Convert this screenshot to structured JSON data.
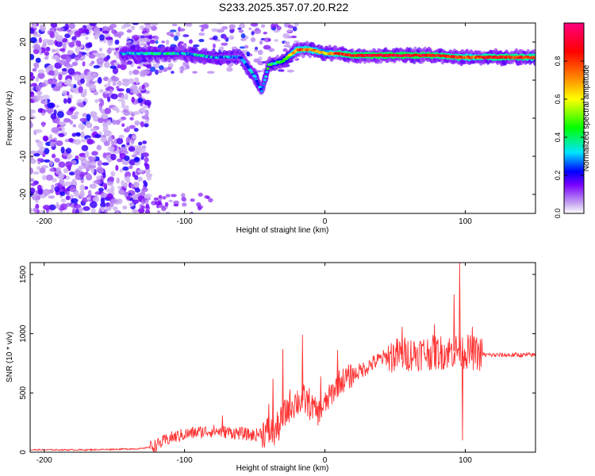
{
  "title": "S233.2025.357.07.20.R22",
  "chart_data": [
    {
      "type": "heatmap",
      "name": "spectrogram",
      "xlabel": "Height of straight line (km)",
      "ylabel": "Frequency (Hz)",
      "xlim": [
        -210,
        150
      ],
      "ylim": [
        -25,
        25
      ],
      "xticks": [
        -200,
        -100,
        0,
        100
      ],
      "yticks": [
        -20,
        -10,
        0,
        10,
        20
      ],
      "colorbar": {
        "label": "Normalized spectral amplitude",
        "range": [
          0,
          1
        ],
        "ticks": [
          "0.0",
          "0.2",
          "0.4",
          "0.6",
          "0.8"
        ],
        "tick_values": [
          0,
          0.2,
          0.4,
          0.6,
          0.8
        ],
        "colors": [
          "#ffffff",
          "#b98cf0",
          "#7a00ff",
          "#0000ff",
          "#00e5ff",
          "#00ff00",
          "#ffff00",
          "#ff7f00",
          "#ff0000",
          "#ff007f"
        ]
      },
      "ridge": {
        "description_points_x": [
          -145,
          -120,
          -100,
          -80,
          -60,
          -50,
          -45,
          -40,
          -30,
          -20,
          -10,
          0,
          10,
          20,
          40,
          60,
          80,
          95,
          105,
          110,
          130,
          150
        ],
        "frequency_hz": [
          17,
          17,
          17,
          16,
          16,
          11,
          7,
          14,
          15,
          18,
          18,
          17,
          17,
          16.5,
          16.5,
          16.5,
          16.5,
          16,
          16,
          16,
          16,
          16
        ],
        "amplitude": [
          0.3,
          0.35,
          0.3,
          0.3,
          0.25,
          0.3,
          0.25,
          0.4,
          0.45,
          0.75,
          0.75,
          0.6,
          0.8,
          0.85,
          0.9,
          0.9,
          0.85,
          0.8,
          0.75,
          0.8,
          0.85,
          0.8
        ]
      },
      "noise_region_x": [
        -210,
        -140
      ]
    },
    {
      "type": "line",
      "name": "snr",
      "xlabel": "Height of straight line (km)",
      "ylabel": "SNR (10 * v/v)",
      "xlim": [
        -210,
        150
      ],
      "ylim": [
        0,
        1600
      ],
      "xticks": [
        -200,
        -100,
        0,
        100
      ],
      "yticks": [
        0,
        500,
        1000,
        1500
      ],
      "color": "#ff3333",
      "series": [
        {
          "x": [
            -210,
            -190,
            -170,
            -150,
            -130,
            -120,
            -110,
            -100,
            -90,
            -80,
            -70,
            -60,
            -50,
            -45,
            -40,
            -35,
            -30,
            -25,
            -20,
            -15,
            -10,
            -5,
            0,
            5,
            10,
            20,
            30,
            40,
            50,
            60,
            70,
            80,
            90,
            95,
            100,
            105,
            110,
            115,
            120,
            130,
            140,
            150
          ],
          "y": [
            20,
            20,
            20,
            25,
            30,
            60,
            120,
            150,
            170,
            180,
            170,
            160,
            140,
            170,
            170,
            180,
            280,
            400,
            430,
            440,
            400,
            330,
            400,
            500,
            590,
            650,
            720,
            790,
            820,
            830,
            840,
            840,
            850,
            860,
            850,
            840,
            830,
            820,
            820,
            820,
            820,
            820
          ]
        }
      ],
      "spikes": [
        {
          "x": -73,
          "y": 310
        },
        {
          "x": -40,
          "y": 410
        },
        {
          "x": -37,
          "y": 620
        },
        {
          "x": -30,
          "y": 870
        },
        {
          "x": -16,
          "y": 990
        },
        {
          "x": -3,
          "y": 640
        },
        {
          "x": 9,
          "y": 860
        },
        {
          "x": 55,
          "y": 1060
        },
        {
          "x": 78,
          "y": 1080
        },
        {
          "x": 92,
          "y": 1330
        },
        {
          "x": 96,
          "y": 1600
        },
        {
          "x": 98,
          "y": 100
        },
        {
          "x": 105,
          "y": 1060
        }
      ]
    }
  ]
}
